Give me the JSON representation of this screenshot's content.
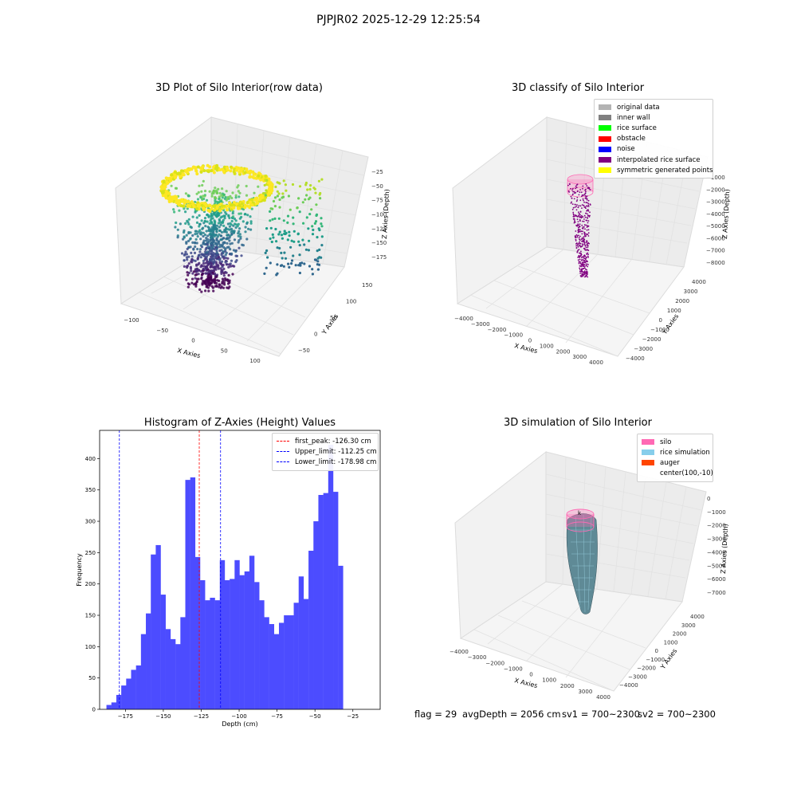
{
  "figure": {
    "suptitle": "PJPJR02 2025-12-29 12:25:54",
    "footer": {
      "flag": "flag = 29",
      "avg_depth": "avgDepth = 2056 cm",
      "sv1": "sv1 = 700~2300",
      "sv2": "sv2 = 700~2300"
    }
  },
  "chart_data": [
    {
      "type": "scatter",
      "projection": "3d",
      "title": "3D Plot of Silo Interior(row data)",
      "xlabel": "X Axies",
      "ylabel": "Y Axies",
      "zlabel": "Z Axies (Depth)",
      "x_ticks": [
        "−100",
        "−50",
        "0",
        "50",
        "100"
      ],
      "y_ticks": [
        "−50",
        "0",
        "50",
        "100",
        "150"
      ],
      "z_ticks": [
        "−25",
        "−50",
        "−75",
        "−100",
        "−125",
        "−150",
        "−175"
      ],
      "colormap": "viridis"
    },
    {
      "type": "scatter",
      "projection": "3d",
      "title": "3D classify of Silo Interior",
      "xlabel": "X Axies",
      "ylabel": "Y Axies",
      "zlabel": "Z Axies (Depth)",
      "x_ticks": [
        "−4000",
        "−3000",
        "−2000",
        "−1000",
        "0",
        "1000",
        "2000",
        "3000",
        "4000"
      ],
      "y_ticks": [
        "−4000",
        "−3000",
        "−2000",
        "−1000",
        "0",
        "1000",
        "2000",
        "3000",
        "4000"
      ],
      "z_ticks": [
        "−1000",
        "−2000",
        "−3000",
        "−4000",
        "−5000",
        "−6000",
        "−7000",
        "−8000"
      ],
      "legend": [
        {
          "label": "original data",
          "color": "#b3b3b3"
        },
        {
          "label": "inner wall",
          "color": "#808080"
        },
        {
          "label": "rice surface",
          "color": "#00ff00"
        },
        {
          "label": "obstacle",
          "color": "#ff0000"
        },
        {
          "label": "noise",
          "color": "#0000ff"
        },
        {
          "label": "interpolated rice surface",
          "color": "#800080"
        },
        {
          "label": "symmetric generated points",
          "color": "#ffff00"
        }
      ]
    },
    {
      "type": "bar",
      "title": "Histogram of Z-Axies (Height) Values",
      "xlabel": "Depth (cm)",
      "ylabel": "Frequency",
      "xlim": [
        -192,
        -7
      ],
      "ylim": [
        0,
        445
      ],
      "bin_width": 3.25,
      "bin_start": -187.5,
      "values": [
        7,
        11,
        23,
        38,
        49,
        63,
        70,
        120,
        153,
        247,
        262,
        183,
        128,
        112,
        104,
        147,
        366,
        370,
        243,
        206,
        174,
        178,
        174,
        238,
        206,
        208,
        238,
        214,
        220,
        245,
        203,
        174,
        147,
        136,
        120,
        138,
        150,
        150,
        170,
        212,
        176,
        253,
        300,
        342,
        345,
        422,
        347,
        229
      ],
      "x_ticks": [
        -175,
        -150,
        -125,
        -100,
        -75,
        -50,
        -25
      ],
      "x_tick_labels": [
        "−175",
        "−150",
        "−125",
        "−100",
        "−75",
        "−50",
        "−25"
      ],
      "y_ticks": [
        0,
        50,
        100,
        150,
        200,
        250,
        300,
        350,
        400
      ],
      "bar_color": "#4c4cff",
      "lines": [
        {
          "label": "first_peak: -126.30 cm",
          "x": -126.3,
          "color": "#ff0000"
        },
        {
          "label": "Upper_limit: -112.25 cm",
          "x": -112.25,
          "color": "#0000ff"
        },
        {
          "label": "Lower_limit: -178.98 cm",
          "x": -178.98,
          "color": "#0000ff"
        }
      ]
    },
    {
      "type": "scatter",
      "projection": "3d",
      "title": "3D simulation of Silo Interior",
      "xlabel": "X Axies",
      "ylabel": "Y Axies",
      "zlabel": "Z Axies (Depth)",
      "x_ticks": [
        "−4000",
        "−3000",
        "−2000",
        "−1000",
        "0",
        "1000",
        "2000",
        "3000",
        "4000"
      ],
      "y_ticks": [
        "−4000",
        "−3000",
        "−2000",
        "−1000",
        "0",
        "1000",
        "2000",
        "3000",
        "4000"
      ],
      "z_ticks": [
        "0",
        "−1000",
        "−2000",
        "−3000",
        "−4000",
        "−5000",
        "−6000",
        "−7000"
      ],
      "annotation": "k",
      "legend": [
        {
          "label": "silo",
          "color": "#ff69b4"
        },
        {
          "label": "rice simulation",
          "color": "#87ceeb"
        },
        {
          "label": "auger",
          "color": "#ff4500"
        },
        {
          "label": "center(100,-10)",
          "color": ""
        }
      ]
    }
  ]
}
